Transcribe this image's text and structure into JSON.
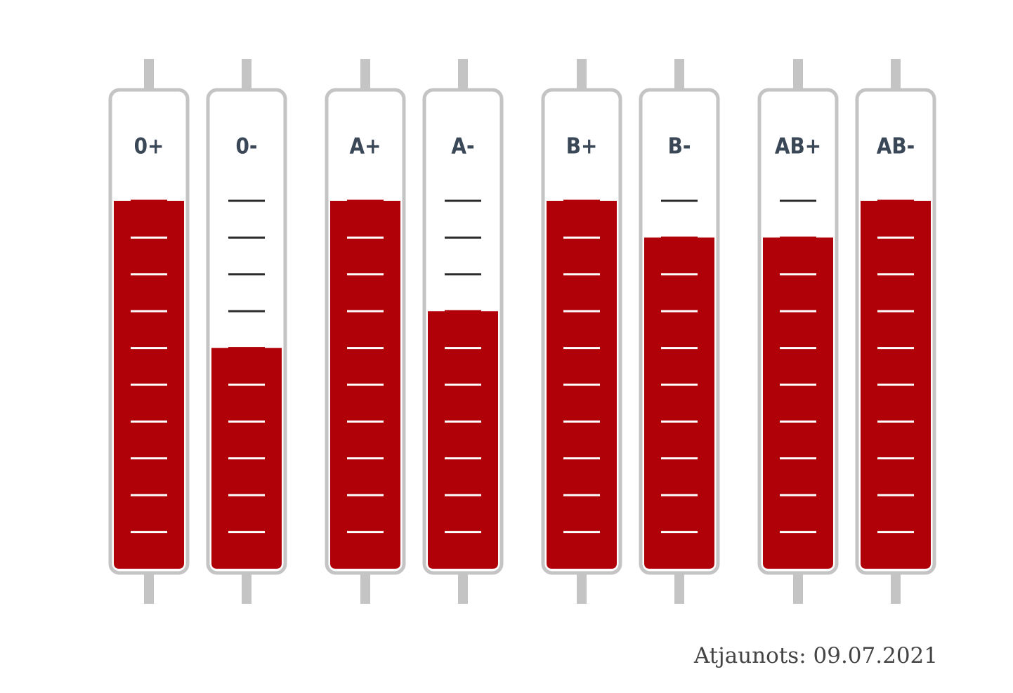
{
  "chart_data": {
    "type": "bar",
    "categories": [
      "0+",
      "0-",
      "A+",
      "A-",
      "B+",
      "B-",
      "AB+",
      "AB-"
    ],
    "values": [
      10,
      6,
      10,
      7,
      10,
      9,
      9,
      10
    ],
    "color": "#b00008",
    "ylim": [
      0,
      10
    ],
    "yticks": [
      1,
      2,
      3,
      4,
      5,
      6,
      7,
      8,
      9,
      10
    ],
    "annotation": "Atjaunots: 09.07.2021"
  }
}
